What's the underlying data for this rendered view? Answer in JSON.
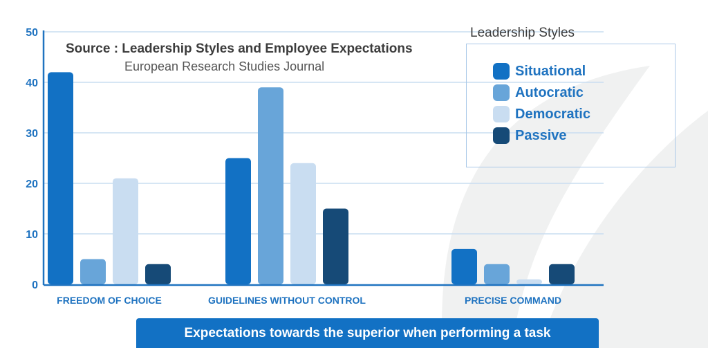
{
  "chart_data": {
    "type": "bar",
    "title": "Source : Leadership Styles and Employee Expectations",
    "subtitle": "European Research Studies Journal",
    "xlabel": "Expectations towards the superior when performing a task",
    "ylabel": "",
    "ylim": [
      0,
      50
    ],
    "yticks": [
      0,
      10,
      20,
      30,
      40,
      50
    ],
    "grid": true,
    "legend_title": "Leadership Styles",
    "legend_position": "top-right",
    "categories": [
      "FREEDOM OF CHOICE",
      "GUIDELINES WITHOUT CONTROL",
      "PRECISE COMMAND"
    ],
    "series": [
      {
        "name": "Situational",
        "color": "#1271c4",
        "values": [
          42,
          25,
          7
        ]
      },
      {
        "name": "Autocratic",
        "color": "#68a5d9",
        "values": [
          5,
          39,
          4
        ]
      },
      {
        "name": "Democratic",
        "color": "#c9ddf1",
        "values": [
          21,
          24,
          1
        ]
      },
      {
        "name": "Passive",
        "color": "#164a77",
        "values": [
          4,
          15,
          4
        ]
      }
    ]
  },
  "colors": {
    "axis": "#1f73c0",
    "grid": "#c9ddf1",
    "background_mark": "#f0f1f1"
  }
}
